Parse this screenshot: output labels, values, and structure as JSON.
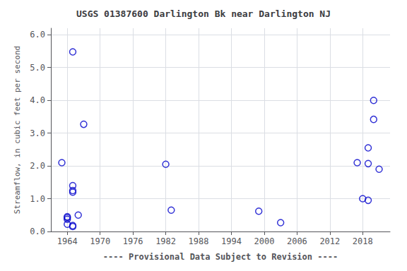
{
  "chart_data": {
    "type": "scatter",
    "title": "USGS 01387600 Darlington Bk near Darlington NJ",
    "ylabel": "Streamflow, in cubic feet per second",
    "xlabel": "---- Provisional Data Subject to Revision ----",
    "x": [
      1963,
      1964,
      1964,
      1964,
      1964,
      1965,
      1965,
      1965,
      1965,
      1965,
      1966,
      1967,
      1965,
      1982,
      1983,
      1999,
      2003,
      2017,
      2018,
      2019,
      2019,
      2019,
      2020,
      2020,
      2021
    ],
    "values": [
      2.1,
      0.42,
      0.37,
      0.45,
      0.22,
      1.25,
      1.2,
      1.4,
      0.18,
      0.15,
      0.5,
      3.27,
      5.48,
      2.05,
      0.65,
      0.62,
      0.27,
      2.1,
      1.0,
      2.55,
      2.07,
      0.95,
      4.0,
      3.42,
      1.9
    ],
    "color": "#0000cc",
    "marker": "circle",
    "xlim": [
      1961,
      2023
    ],
    "ylim": [
      0.0,
      6.2
    ],
    "xticks": [
      1964,
      1970,
      1976,
      1982,
      1988,
      1994,
      2000,
      2006,
      2012,
      2018
    ],
    "yticks": [
      {
        "value": 0.0,
        "label": "0.0"
      },
      {
        "value": 1.0,
        "label": "1.0"
      },
      {
        "value": 2.0,
        "label": "2.0"
      },
      {
        "value": 3.0,
        "label": "3.0"
      },
      {
        "value": 4.0,
        "label": "4.0"
      },
      {
        "value": 5.0,
        "label": "5.0"
      },
      {
        "value": 6.0,
        "label": "6.0"
      }
    ],
    "grid": true
  }
}
